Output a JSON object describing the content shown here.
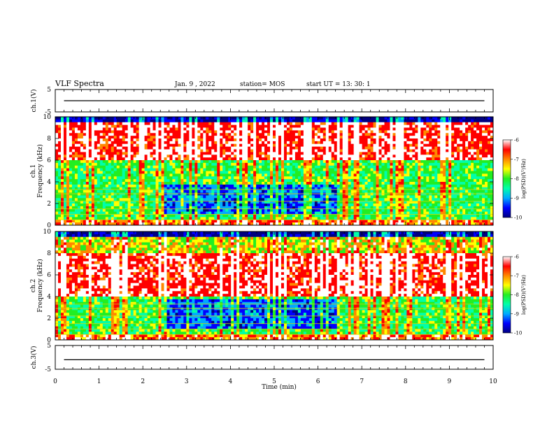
{
  "header": {
    "title": "VLF Spectra",
    "date": "Jan. 9 , 2022",
    "station": "station= MOS",
    "start": "start UT = 13: 30: 1"
  },
  "chart_data": {
    "type": "heatmap",
    "xlabel": "Time (min)",
    "xlim": [
      0,
      10
    ],
    "xticks": [
      "0",
      "1",
      "2",
      "3",
      "4",
      "5",
      "6",
      "7",
      "8",
      "9",
      "10"
    ],
    "panels": [
      {
        "name": "ch.1(V)",
        "type": "line",
        "ylim": [
          -5,
          5
        ],
        "yticks": [
          "5",
          "-5"
        ],
        "level": 0
      },
      {
        "name": "ch.1 Frequency (kHz)",
        "type": "heatmap",
        "ylabel_top": "ch.1",
        "ylabel": "Frequency (kHz)",
        "ylim": [
          0,
          10
        ],
        "yticks": [
          "0",
          "2",
          "4",
          "6",
          "8",
          "10"
        ],
        "band_kHz": [
          6,
          9.5
        ],
        "gap_min": [
          2.5,
          6.5
        ]
      },
      {
        "name": "ch.2 Frequency (kHz)",
        "type": "heatmap",
        "ylabel_top": "ch.2",
        "ylabel": "Frequency (kHz)",
        "ylim": [
          0,
          10
        ],
        "yticks": [
          "0",
          "2",
          "4",
          "6",
          "8",
          "10"
        ],
        "band_kHz": [
          4,
          8
        ],
        "gap_min": [
          2.5,
          6.5
        ]
      },
      {
        "name": "ch.3(V)",
        "type": "line",
        "ylim": [
          -5,
          5
        ],
        "yticks": [
          "5",
          "-5"
        ],
        "level": -1
      }
    ],
    "colorbar": {
      "label": "log(PSD)(V²/Hz)",
      "ticks": [
        "-6",
        "-7",
        "-8",
        "-9",
        "-10"
      ],
      "range": [
        -10,
        -6
      ],
      "colors": [
        "#000080",
        "#0000ff",
        "#00aaff",
        "#00ffaa",
        "#22ee22",
        "#ffff00",
        "#ff8800",
        "#ff0000",
        "#ffffff"
      ]
    }
  }
}
